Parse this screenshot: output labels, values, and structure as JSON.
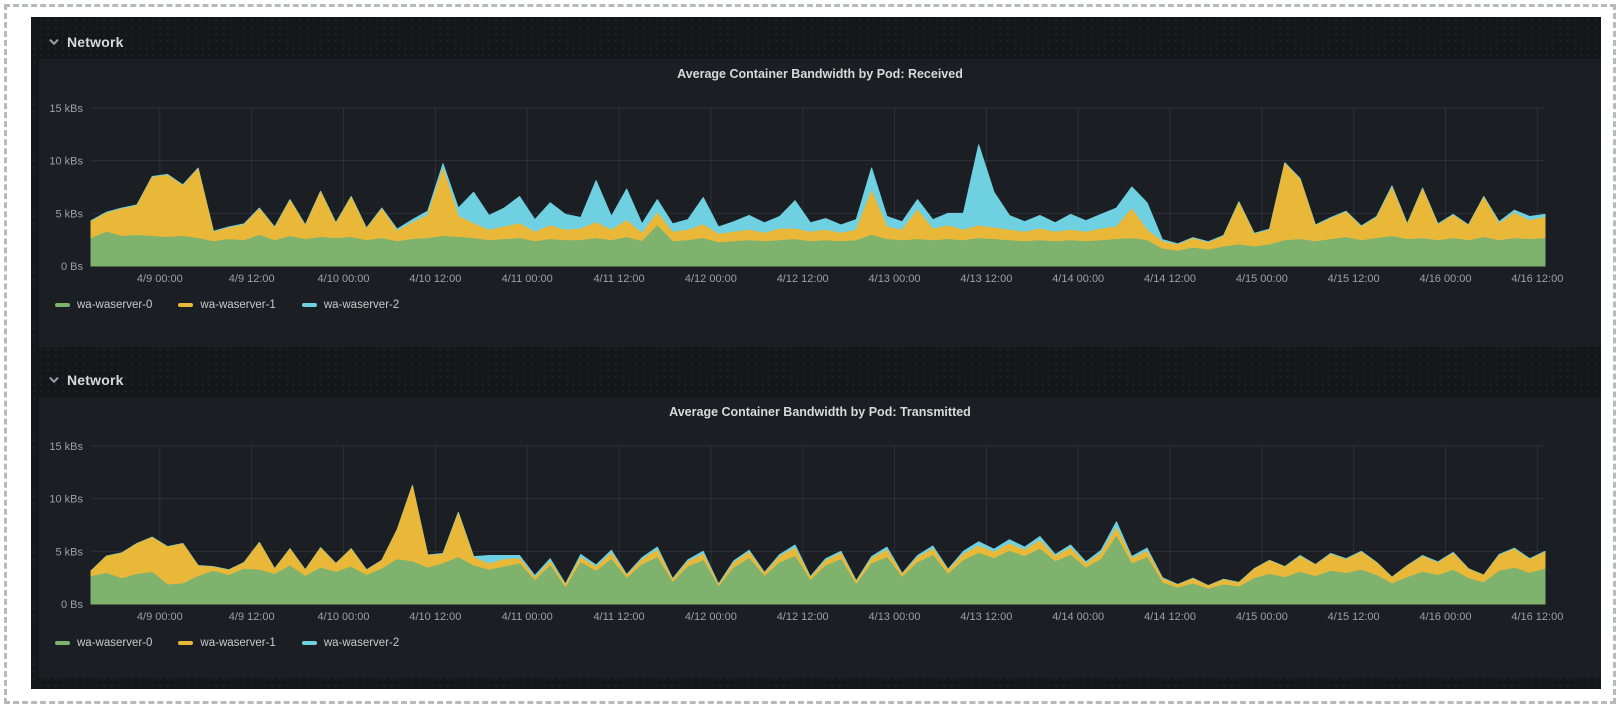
{
  "theme": {
    "page_background": "#141619",
    "panel_background": "#1b1e22",
    "title_color": "#d8d9da",
    "axis_text_color": "#9da0a8",
    "series_colors": {
      "green": "#7EB26D",
      "yellow": "#EAB839",
      "cyan": "#6ED0E0"
    }
  },
  "rows": [
    {
      "title": "Network",
      "collapsed": false
    },
    {
      "title": "Network",
      "collapsed": false
    }
  ],
  "chart_data": [
    {
      "type": "area",
      "stacked": true,
      "title": "Average Container Bandwidth by Pod: Received",
      "unit": "kBs",
      "ylim": [
        0,
        15
      ],
      "grid": true,
      "legend_position": "bottom",
      "y_ticks": [
        {
          "value": 0,
          "label": "0 Bs"
        },
        {
          "value": 5,
          "label": "5 kBs"
        },
        {
          "value": 10,
          "label": "10 kBs"
        },
        {
          "value": 15,
          "label": "15 kBs"
        }
      ],
      "x_start": "4/8 15:00",
      "x_interval_hours": 2,
      "x_ticks": [
        {
          "hour": 9,
          "label": "4/9 00:00"
        },
        {
          "hour": 21,
          "label": "4/9 12:00"
        },
        {
          "hour": 33,
          "label": "4/10 00:00"
        },
        {
          "hour": 45,
          "label": "4/10 12:00"
        },
        {
          "hour": 57,
          "label": "4/11 00:00"
        },
        {
          "hour": 69,
          "label": "4/11 12:00"
        },
        {
          "hour": 81,
          "label": "4/12 00:00"
        },
        {
          "hour": 93,
          "label": "4/12 12:00"
        },
        {
          "hour": 105,
          "label": "4/13 00:00"
        },
        {
          "hour": 117,
          "label": "4/13 12:00"
        },
        {
          "hour": 129,
          "label": "4/14 00:00"
        },
        {
          "hour": 141,
          "label": "4/14 12:00"
        },
        {
          "hour": 153,
          "label": "4/15 00:00"
        },
        {
          "hour": 165,
          "label": "4/15 12:00"
        },
        {
          "hour": 177,
          "label": "4/16 00:00"
        },
        {
          "hour": 189,
          "label": "4/16 12:00"
        }
      ],
      "series": [
        {
          "name": "wa-waserver-0",
          "color": "#7EB26D",
          "values": [
            2.6,
            3.2,
            2.8,
            2.9,
            2.8,
            2.7,
            2.8,
            2.6,
            2.3,
            2.5,
            2.4,
            2.9,
            2.4,
            2.8,
            2.5,
            2.7,
            2.6,
            2.7,
            2.4,
            2.6,
            2.3,
            2.5,
            2.6,
            2.8,
            2.7,
            2.6,
            2.4,
            2.5,
            2.6,
            2.3,
            2.5,
            2.4,
            2.4,
            2.6,
            2.4,
            2.7,
            2.3,
            3.8,
            2.3,
            2.4,
            2.6,
            2.2,
            2.3,
            2.4,
            2.3,
            2.4,
            2.5,
            2.3,
            2.4,
            2.3,
            2.4,
            2.9,
            2.5,
            2.4,
            2.5,
            2.4,
            2.5,
            2.4,
            2.6,
            2.5,
            2.4,
            2.3,
            2.4,
            2.3,
            2.4,
            2.3,
            2.4,
            2.5,
            2.6,
            2.4,
            1.6,
            1.4,
            1.7,
            1.5,
            1.8,
            2.0,
            1.8,
            2.0,
            2.4,
            2.5,
            2.3,
            2.5,
            2.7,
            2.4,
            2.6,
            2.8,
            2.5,
            2.6,
            2.4,
            2.6,
            2.4,
            2.7,
            2.4,
            2.6,
            2.5,
            2.6
          ]
        },
        {
          "name": "wa-waserver-1",
          "color": "#EAB839",
          "values": [
            1.6,
            1.8,
            2.6,
            2.8,
            5.6,
            5.9,
            4.8,
            6.6,
            0.9,
            1.1,
            1.5,
            2.5,
            1.2,
            3.4,
            1.3,
            4.3,
            1.4,
            3.8,
            1.1,
            2.8,
            1.0,
            1.6,
            2.2,
            6.4,
            2.0,
            1.4,
            1.0,
            1.2,
            1.4,
            0.9,
            1.3,
            1.0,
            1.1,
            1.5,
            1.0,
            1.6,
            0.8,
            1.2,
            0.9,
            1.0,
            1.3,
            0.8,
            0.9,
            1.0,
            0.8,
            1.1,
            1.0,
            0.9,
            1.0,
            0.8,
            1.0,
            4.2,
            1.2,
            1.0,
            2.8,
            1.1,
            1.3,
            1.0,
            1.2,
            1.1,
            1.0,
            0.9,
            1.1,
            0.9,
            1.0,
            0.9,
            1.1,
            1.2,
            2.8,
            1.0,
            0.7,
            0.6,
            0.9,
            0.7,
            1.0,
            4.0,
            1.2,
            1.4,
            7.3,
            5.7,
            1.5,
            2.0,
            2.4,
            1.3,
            2.0,
            4.6,
            1.4,
            4.7,
            1.5,
            2.2,
            1.4,
            3.8,
            1.6,
            2.4,
            1.8,
            2.0
          ]
        },
        {
          "name": "wa-waserver-2",
          "color": "#6ED0E0",
          "values": [
            0.1,
            0.1,
            0.1,
            0.1,
            0.1,
            0.1,
            0.1,
            0.1,
            0.1,
            0.1,
            0.1,
            0.1,
            0.1,
            0.1,
            0.1,
            0.1,
            0.1,
            0.1,
            0.1,
            0.1,
            0.2,
            0.3,
            0.4,
            0.5,
            0.8,
            3.0,
            1.4,
            1.8,
            2.6,
            1.2,
            2.2,
            1.5,
            1.1,
            4.0,
            1.3,
            3.0,
            0.9,
            1.3,
            0.8,
            1.0,
            2.6,
            0.7,
            1.0,
            1.4,
            1.0,
            1.2,
            2.7,
            0.9,
            1.1,
            0.8,
            1.0,
            2.2,
            1.0,
            0.8,
            1.0,
            0.9,
            1.2,
            1.6,
            7.7,
            3.4,
            1.4,
            1.0,
            1.3,
            0.9,
            1.5,
            1.1,
            1.4,
            1.8,
            2.1,
            2.6,
            0.2,
            0.1,
            0.1,
            0.1,
            0.1,
            0.1,
            0.1,
            0.1,
            0.1,
            0.1,
            0.1,
            0.1,
            0.1,
            0.1,
            0.1,
            0.2,
            0.1,
            0.1,
            0.1,
            0.1,
            0.1,
            0.1,
            0.2,
            0.3,
            0.4,
            0.3
          ]
        }
      ]
    },
    {
      "type": "area",
      "stacked": true,
      "title": "Average Container Bandwidth by Pod: Transmitted",
      "unit": "kBs",
      "ylim": [
        0,
        15
      ],
      "grid": true,
      "legend_position": "bottom",
      "y_ticks": [
        {
          "value": 0,
          "label": "0 Bs"
        },
        {
          "value": 5,
          "label": "5 kBs"
        },
        {
          "value": 10,
          "label": "10 kBs"
        },
        {
          "value": 15,
          "label": "15 kBs"
        }
      ],
      "x_start": "4/8 15:00",
      "x_interval_hours": 2,
      "x_ticks": [
        {
          "hour": 9,
          "label": "4/9 00:00"
        },
        {
          "hour": 21,
          "label": "4/9 12:00"
        },
        {
          "hour": 33,
          "label": "4/10 00:00"
        },
        {
          "hour": 45,
          "label": "4/10 12:00"
        },
        {
          "hour": 57,
          "label": "4/11 00:00"
        },
        {
          "hour": 69,
          "label": "4/11 12:00"
        },
        {
          "hour": 81,
          "label": "4/12 00:00"
        },
        {
          "hour": 93,
          "label": "4/12 12:00"
        },
        {
          "hour": 105,
          "label": "4/13 00:00"
        },
        {
          "hour": 117,
          "label": "4/13 12:00"
        },
        {
          "hour": 129,
          "label": "4/14 00:00"
        },
        {
          "hour": 141,
          "label": "4/14 12:00"
        },
        {
          "hour": 153,
          "label": "4/15 00:00"
        },
        {
          "hour": 165,
          "label": "4/15 12:00"
        },
        {
          "hour": 177,
          "label": "4/16 00:00"
        },
        {
          "hour": 189,
          "label": "4/16 12:00"
        }
      ],
      "series": [
        {
          "name": "wa-waserver-0",
          "color": "#7EB26D",
          "values": [
            2.6,
            2.9,
            2.4,
            2.8,
            3.0,
            1.8,
            1.9,
            2.6,
            3.1,
            2.7,
            3.3,
            3.2,
            2.8,
            3.6,
            2.6,
            3.4,
            3.0,
            3.5,
            2.7,
            3.3,
            4.2,
            4.0,
            3.4,
            3.8,
            4.4,
            3.6,
            3.2,
            3.5,
            3.8,
            2.2,
            3.6,
            1.5,
            3.9,
            3.1,
            4.2,
            2.4,
            3.7,
            4.4,
            2.0,
            3.5,
            4.1,
            1.6,
            3.4,
            4.3,
            2.6,
            3.9,
            4.5,
            2.2,
            3.6,
            4.2,
            1.8,
            3.8,
            4.4,
            2.5,
            3.9,
            4.6,
            2.8,
            4.1,
            4.8,
            4.3,
            5.0,
            4.5,
            5.2,
            4.0,
            4.6,
            3.4,
            4.2,
            6.4,
            3.8,
            4.4,
            2.0,
            1.5,
            1.9,
            1.4,
            1.8,
            1.6,
            2.4,
            2.8,
            2.5,
            3.0,
            2.6,
            3.1,
            2.9,
            3.2,
            2.7,
            1.9,
            2.5,
            3.0,
            2.7,
            3.2,
            2.4,
            2.0,
            3.1,
            3.4,
            2.9,
            3.3
          ]
        },
        {
          "name": "wa-waserver-1",
          "color": "#EAB839",
          "values": [
            0.5,
            1.6,
            2.4,
            2.9,
            3.3,
            3.6,
            3.8,
            1.0,
            0.4,
            0.5,
            0.6,
            2.6,
            0.5,
            1.6,
            0.6,
            1.9,
            0.8,
            1.7,
            0.5,
            0.8,
            2.8,
            7.2,
            1.2,
            0.9,
            4.2,
            0.8,
            0.6,
            0.7,
            0.5,
            0.3,
            0.4,
            0.3,
            0.5,
            0.4,
            0.6,
            0.3,
            0.5,
            0.7,
            0.3,
            0.5,
            0.6,
            0.2,
            0.5,
            0.6,
            0.3,
            0.6,
            0.8,
            0.3,
            0.5,
            0.6,
            0.3,
            0.5,
            0.7,
            0.3,
            0.5,
            0.6,
            0.4,
            0.6,
            0.7,
            0.6,
            0.7,
            0.6,
            0.8,
            0.5,
            0.7,
            0.4,
            0.6,
            0.8,
            0.5,
            0.6,
            0.4,
            0.3,
            0.5,
            0.3,
            0.5,
            0.4,
            0.9,
            1.3,
            1.0,
            1.5,
            1.1,
            1.6,
            1.3,
            1.7,
            1.2,
            0.6,
            1.1,
            1.5,
            1.2,
            1.6,
            0.9,
            0.7,
            1.5,
            1.8,
            1.3,
            1.6
          ]
        },
        {
          "name": "wa-waserver-2",
          "color": "#6ED0E0",
          "values": [
            0.05,
            0.05,
            0.05,
            0.05,
            0.05,
            0.05,
            0.05,
            0.05,
            0.05,
            0.05,
            0.05,
            0.05,
            0.05,
            0.05,
            0.05,
            0.05,
            0.05,
            0.05,
            0.05,
            0.05,
            0.05,
            0.05,
            0.05,
            0.1,
            0.1,
            0.1,
            0.8,
            0.4,
            0.3,
            0.2,
            0.3,
            0.1,
            0.3,
            0.2,
            0.3,
            0.1,
            0.2,
            0.3,
            0.1,
            0.2,
            0.3,
            0.1,
            0.2,
            0.2,
            0.1,
            0.2,
            0.3,
            0.1,
            0.2,
            0.2,
            0.1,
            0.2,
            0.3,
            0.1,
            0.2,
            0.3,
            0.1,
            0.3,
            0.4,
            0.3,
            0.4,
            0.3,
            0.4,
            0.2,
            0.3,
            0.2,
            0.3,
            0.6,
            0.2,
            0.3,
            0.1,
            0.05,
            0.05,
            0.05,
            0.05,
            0.05,
            0.05,
            0.05,
            0.05,
            0.1,
            0.05,
            0.1,
            0.1,
            0.1,
            0.05,
            0.05,
            0.05,
            0.1,
            0.1,
            0.1,
            0.05,
            0.05,
            0.1,
            0.1,
            0.1,
            0.1
          ]
        }
      ]
    }
  ]
}
